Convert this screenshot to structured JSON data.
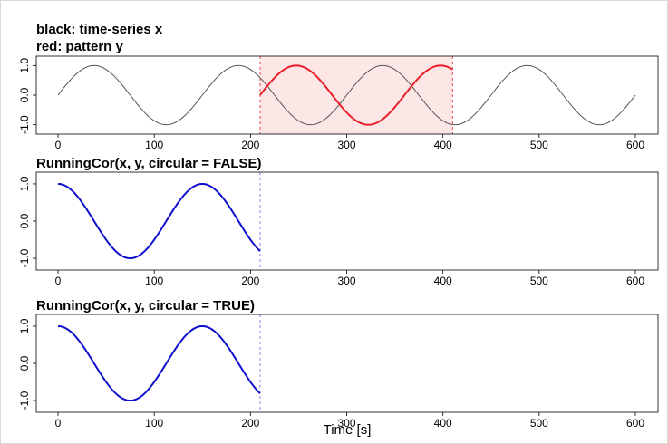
{
  "chart_data": [
    {
      "type": "line",
      "title_lines": [
        "black: time-series x",
        "red: pattern y"
      ],
      "xlim": [
        0,
        600
      ],
      "ylim": [
        -1,
        1
      ],
      "x_ticks": [
        0,
        100,
        200,
        300,
        400,
        500,
        600
      ],
      "y_ticks": [
        "-1.0",
        "0.0",
        "1.0"
      ],
      "y_tick_values": [
        -1,
        0,
        1
      ],
      "series": [
        {
          "color": "#555555",
          "width": 1,
          "kind": "sine",
          "x_range": [
            0,
            600
          ],
          "period": 150,
          "phase_x": 0
        },
        {
          "color": "#e8202a",
          "width": 2,
          "kind": "sine",
          "x_range": [
            210,
            410
          ],
          "period": 150,
          "phase_x": 210
        }
      ],
      "highlight": {
        "x_range": [
          210,
          410
        ],
        "fill": "#fde6e6",
        "line_color": "#e8202a"
      }
    },
    {
      "type": "line",
      "title": "RunningCor(x, y, circular = FALSE)",
      "xlim": [
        0,
        600
      ],
      "ylim": [
        -1,
        1
      ],
      "x_ticks": [
        0,
        100,
        200,
        300,
        400,
        500,
        600
      ],
      "y_ticks": [
        "-1.0",
        "0.0",
        "1.0"
      ],
      "y_tick_values": [
        -1,
        0,
        1
      ],
      "series": [
        {
          "color": "#1010cc",
          "width": 2,
          "kind": "cosine",
          "x_range": [
            0,
            210
          ],
          "period": 150
        }
      ],
      "vline": {
        "x": 210,
        "color": "#6a6ae0"
      }
    },
    {
      "type": "line",
      "title": "RunningCor(x, y, circular = TRUE)",
      "xlim": [
        0,
        600
      ],
      "ylim": [
        -1,
        1
      ],
      "x_ticks": [
        0,
        100,
        200,
        300,
        400,
        500,
        600
      ],
      "y_ticks": [
        "-1.0",
        "0.0",
        "1.0"
      ],
      "y_tick_values": [
        -1,
        0,
        1
      ],
      "xlabel": "Time [s]",
      "series": [
        {
          "color": "#1010cc",
          "width": 2,
          "kind": "cosine",
          "x_range": [
            0,
            210
          ],
          "period": 150
        }
      ],
      "vline": {
        "x": 210,
        "color": "#6a6ae0"
      }
    }
  ]
}
